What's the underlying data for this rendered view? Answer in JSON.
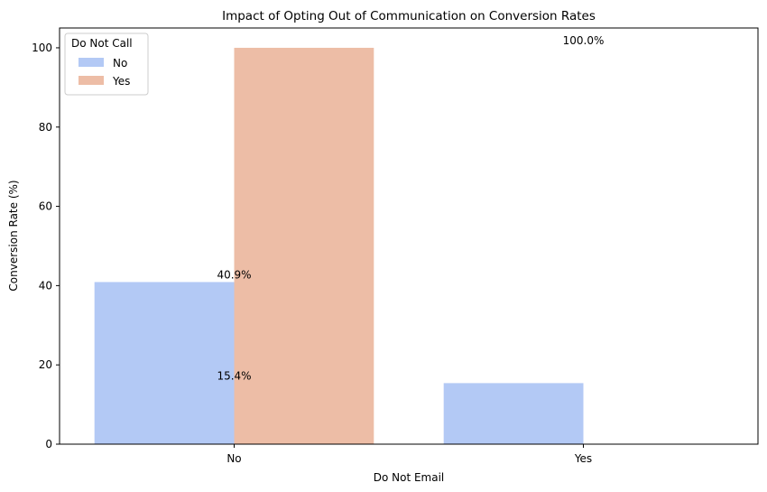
{
  "chart_data": {
    "type": "bar",
    "title": "Impact of Opting Out of Communication on Conversion Rates",
    "xlabel": "Do Not Email",
    "ylabel": "Conversion Rate (%)",
    "categories": [
      "No",
      "Yes"
    ],
    "series": [
      {
        "name": "No",
        "color": "#b3c9f5",
        "values": [
          40.9,
          15.4
        ]
      },
      {
        "name": "Yes",
        "color": "#edbda6",
        "values": [
          100.0,
          0
        ]
      }
    ],
    "ylim": [
      0,
      105
    ],
    "yticks": [
      0,
      20,
      40,
      60,
      80,
      100
    ],
    "grid": false,
    "legend": {
      "title": "Do Not Call",
      "placement": "top-left"
    },
    "data_labels": [
      "40.9%",
      "15.4%",
      "100.0%"
    ]
  }
}
